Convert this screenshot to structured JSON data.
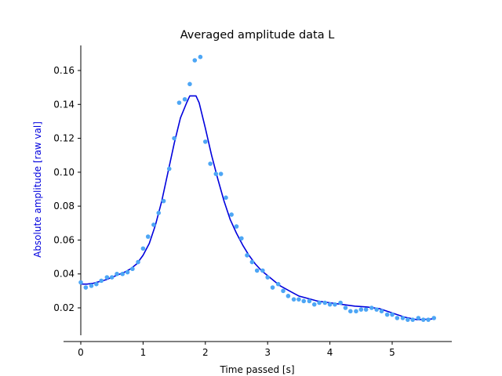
{
  "chart_data": {
    "type": "scatter",
    "title": "Averaged amplitude data L",
    "xlabel": "Time passed [s]",
    "ylabel": "Absolute amplitude [raw val]",
    "xlim": [
      -0.28,
      5.96
    ],
    "ylim": [
      0.004,
      0.176
    ],
    "xticks": [
      0,
      1,
      2,
      3,
      4,
      5
    ],
    "yticks": [
      0.02,
      0.04,
      0.06,
      0.08,
      0.1,
      0.12,
      0.14,
      0.16
    ],
    "ytick_labels": [
      "0.02",
      "0.04",
      "0.06",
      "0.08",
      "0.10",
      "0.12",
      "0.14",
      "0.16"
    ],
    "grid": false,
    "series": [
      {
        "kind": "scatter",
        "color": "#4da6f5",
        "x": [
          0.0,
          0.08,
          0.17,
          0.25,
          0.33,
          0.42,
          0.5,
          0.58,
          0.67,
          0.75,
          0.83,
          0.92,
          1.0,
          1.08,
          1.17,
          1.25,
          1.33,
          1.42,
          1.5,
          1.58,
          1.67,
          1.75,
          1.83,
          1.92,
          2.0,
          2.08,
          2.17,
          2.25,
          2.33,
          2.42,
          2.5,
          2.58,
          2.67,
          2.75,
          2.83,
          2.92,
          3.0,
          3.08,
          3.17,
          3.25,
          3.33,
          3.42,
          3.5,
          3.58,
          3.67,
          3.75,
          3.83,
          3.92,
          4.0,
          4.08,
          4.17,
          4.25,
          4.33,
          4.42,
          4.5,
          4.58,
          4.67,
          4.75,
          4.83,
          4.92,
          5.0,
          5.08,
          5.17,
          5.25,
          5.33,
          5.42,
          5.5,
          5.58,
          5.67
        ],
        "y": [
          0.035,
          0.032,
          0.033,
          0.034,
          0.036,
          0.038,
          0.038,
          0.04,
          0.04,
          0.041,
          0.043,
          0.047,
          0.055,
          0.062,
          0.069,
          0.076,
          0.083,
          0.102,
          0.12,
          0.141,
          0.143,
          0.152,
          0.166,
          0.168,
          0.118,
          0.105,
          0.099,
          0.099,
          0.085,
          0.075,
          0.068,
          0.061,
          0.051,
          0.047,
          0.042,
          0.042,
          0.038,
          0.032,
          0.034,
          0.03,
          0.027,
          0.025,
          0.025,
          0.024,
          0.024,
          0.022,
          0.023,
          0.023,
          0.022,
          0.022,
          0.023,
          0.02,
          0.018,
          0.018,
          0.019,
          0.019,
          0.02,
          0.019,
          0.018,
          0.016,
          0.016,
          0.014,
          0.014,
          0.013,
          0.013,
          0.014,
          0.013,
          0.013,
          0.014
        ]
      },
      {
        "kind": "line",
        "color": "#0000dd",
        "x": [
          0.0,
          0.1,
          0.2,
          0.3,
          0.4,
          0.5,
          0.6,
          0.7,
          0.8,
          0.9,
          1.0,
          1.1,
          1.2,
          1.3,
          1.4,
          1.5,
          1.6,
          1.7,
          1.75,
          1.85,
          1.9,
          2.0,
          2.1,
          2.2,
          2.3,
          2.4,
          2.5,
          2.6,
          2.7,
          2.8,
          2.9,
          3.0,
          3.1,
          3.2,
          3.3,
          3.4,
          3.5,
          3.6,
          3.8,
          4.0,
          4.2,
          4.4,
          4.6,
          4.8,
          5.0,
          5.2,
          5.4,
          5.67
        ],
        "y": [
          0.034,
          0.034,
          0.0345,
          0.0355,
          0.0365,
          0.038,
          0.0395,
          0.041,
          0.043,
          0.046,
          0.051,
          0.058,
          0.069,
          0.083,
          0.1,
          0.117,
          0.132,
          0.141,
          0.145,
          0.145,
          0.141,
          0.126,
          0.11,
          0.096,
          0.083,
          0.072,
          0.064,
          0.057,
          0.051,
          0.046,
          0.042,
          0.039,
          0.036,
          0.033,
          0.031,
          0.029,
          0.027,
          0.026,
          0.024,
          0.023,
          0.022,
          0.021,
          0.0205,
          0.0195,
          0.017,
          0.0145,
          0.013,
          0.0135
        ]
      }
    ]
  }
}
